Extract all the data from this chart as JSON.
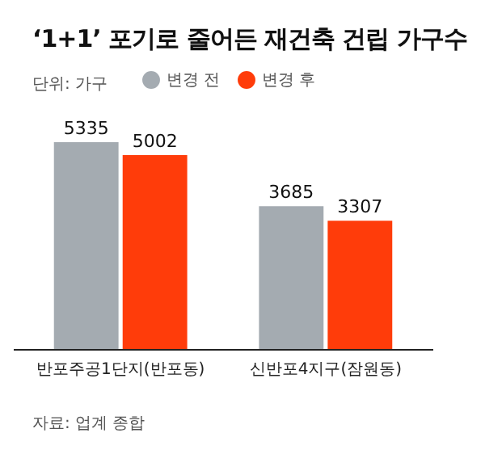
{
  "chart_data": {
    "type": "bar",
    "title": "‘1+1’ 포기로 줄어든 재건축 건립 가구수",
    "subtitle": "단위: 가구",
    "categories": [
      "반포주공1단지(반포동)",
      "신반포4지구(잠원동)"
    ],
    "series": [
      {
        "name": "변경 전",
        "color": "#a4abb1",
        "values": [
          5335,
          3685
        ]
      },
      {
        "name": "변경 후",
        "color": "#ff3c0a",
        "values": [
          5002,
          3307
        ]
      }
    ],
    "data_labels": true,
    "legend": "top left",
    "annotations": [
      "자료: 업계 종합"
    ]
  }
}
